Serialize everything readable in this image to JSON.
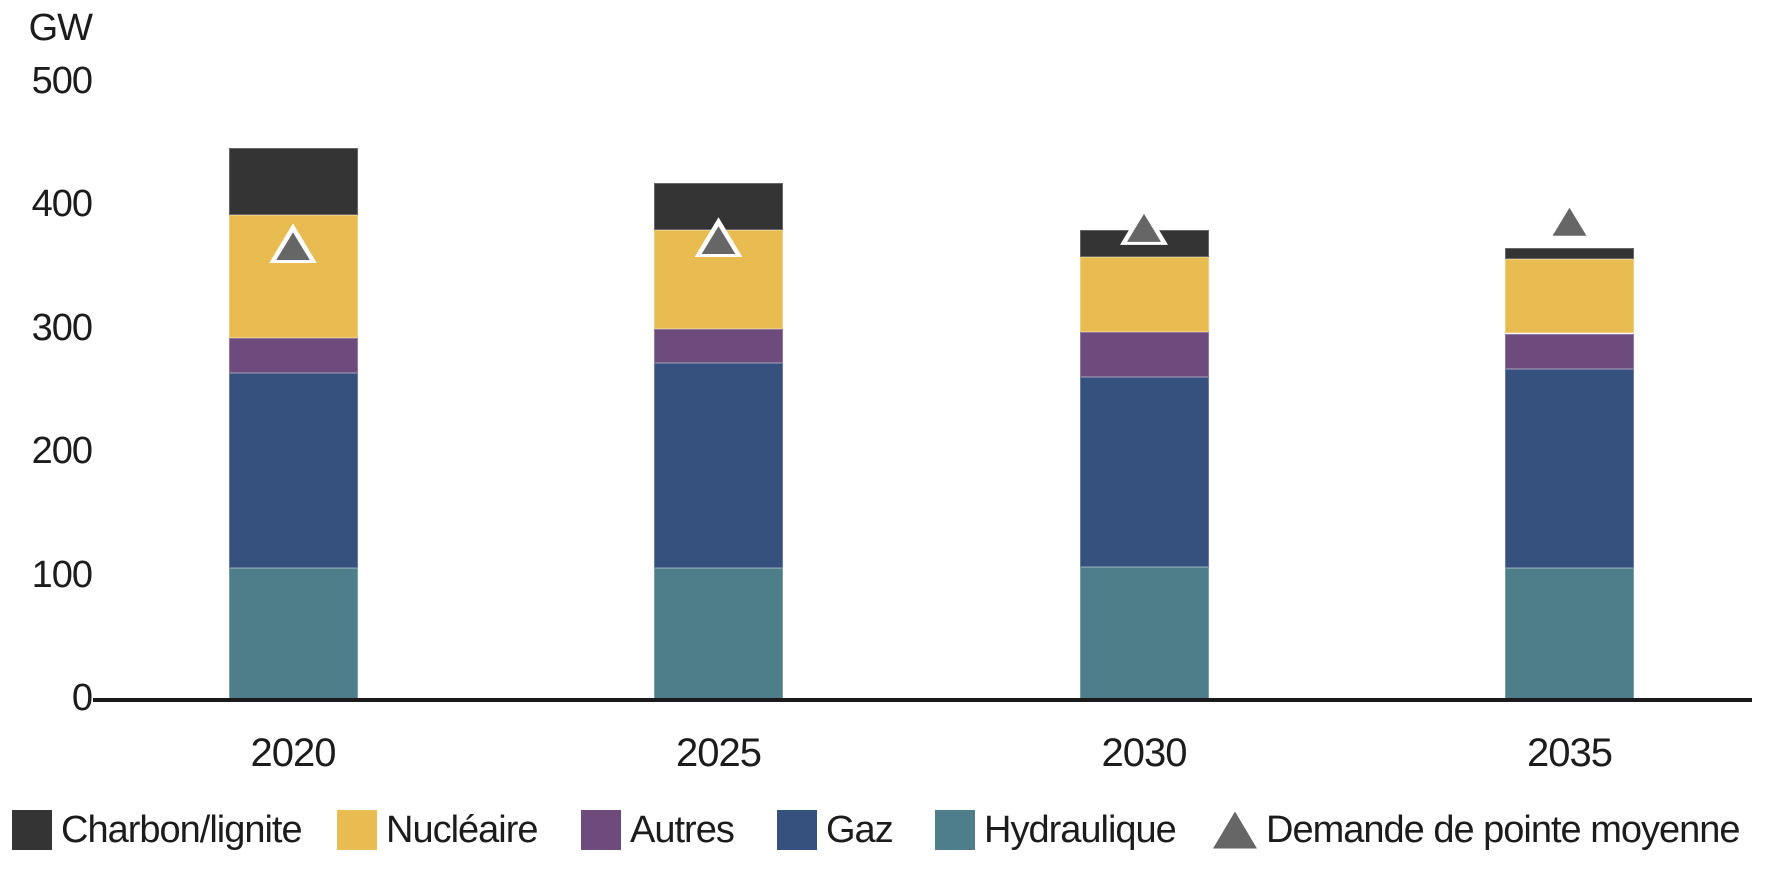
{
  "chart_data": {
    "type": "bar",
    "subtype": "stacked-bar-with-markers",
    "unit_label": "GW",
    "categories": [
      "2020",
      "2025",
      "2030",
      "2035"
    ],
    "series": [
      {
        "name": "Hydraulique",
        "color": "#4E7E89",
        "values": [
          107,
          107,
          108,
          107
        ]
      },
      {
        "name": "Gaz",
        "color": "#36517E",
        "values": [
          158,
          166,
          154,
          161
        ]
      },
      {
        "name": "Autres",
        "color": "#6E4B7D",
        "values": [
          28,
          28,
          36,
          29
        ]
      },
      {
        "name": "Nucléaire",
        "color": "#E9BC52",
        "values": [
          100,
          80,
          61,
          60
        ]
      },
      {
        "name": "Charbon/lignite",
        "color": "#343434",
        "values": [
          54,
          38,
          22,
          9
        ]
      }
    ],
    "totals": [
      447,
      419,
      381,
      366
    ],
    "marker_series": {
      "name": "Demande de pointe moyenne",
      "color": "#666666",
      "outline_color": "#ffffff",
      "values": [
        370,
        375,
        385,
        390
      ]
    },
    "y_ticks": [
      0,
      100,
      200,
      300,
      400,
      500
    ],
    "ylim": [
      0,
      500
    ],
    "grid": "off",
    "legend_position": "bottom",
    "axis_color": "#1a1a1a",
    "text_color": "#1c1c1c",
    "background_color": "#ffffff"
  }
}
